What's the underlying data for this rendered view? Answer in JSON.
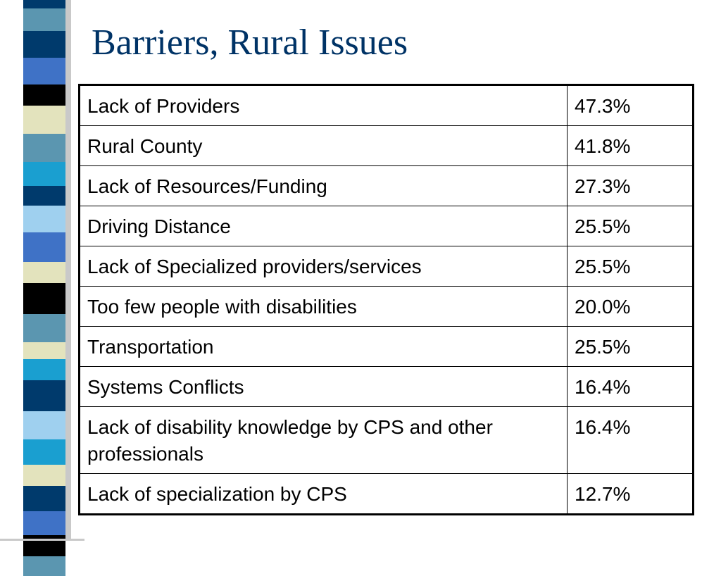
{
  "title": "Barriers, Rural Issues",
  "table": {
    "rows": [
      {
        "issue": "Lack of Providers",
        "percent": "47.3%"
      },
      {
        "issue": "Rural County",
        "percent": "41.8%"
      },
      {
        "issue": "Lack of Resources/Funding",
        "percent": "27.3%"
      },
      {
        "issue": "Driving Distance",
        "percent": "25.5%"
      },
      {
        "issue": "Lack of Specialized providers/services",
        "percent": "25.5%"
      },
      {
        "issue": "Too few people with disabilities",
        "percent": "20.0%"
      },
      {
        "issue": "Transportation",
        "percent": "25.5%"
      },
      {
        "issue": "Systems Conflicts",
        "percent": "16.4%"
      },
      {
        "issue": "Lack of disability knowledge by CPS and other professionals",
        "percent": "16.4%"
      },
      {
        "issue": "Lack of specialization by CPS",
        "percent": "12.7%"
      }
    ]
  },
  "colors": {
    "title": "#003366",
    "stripe_palette": [
      "#5b96b0",
      "#003a6c",
      "#3f72c6",
      "#000000",
      "#e3e3bd",
      "#1a9fd0",
      "#9fd0ef"
    ]
  }
}
